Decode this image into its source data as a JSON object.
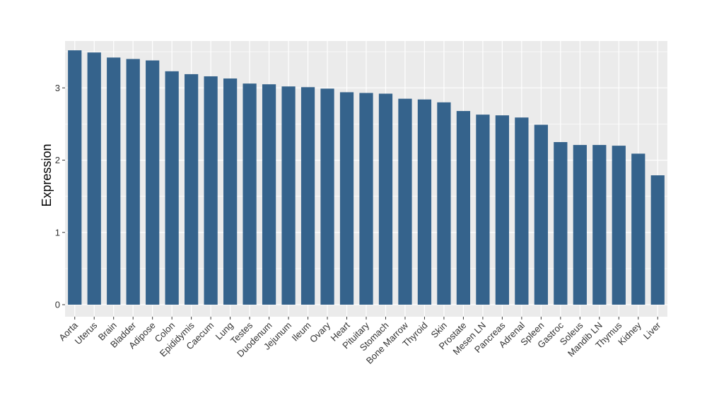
{
  "chart_data": {
    "type": "bar",
    "title": "",
    "xlabel": "",
    "ylabel": "Expression",
    "ylim": [
      0,
      3.6
    ],
    "yticks": [
      0,
      1,
      2,
      3
    ],
    "grid": true,
    "colors": {
      "bar": "#35638C",
      "panel": "#EBEBEB",
      "grid": "#FFFFFF"
    },
    "categories": [
      "Aorta",
      "Uterus",
      "Brain",
      "Bladder",
      "Adipose",
      "Colon",
      "Epididymis",
      "Caecum",
      "Lung",
      "Testes",
      "Duodenum",
      "Jejunum",
      "Ileum",
      "Ovary",
      "Heart",
      "Pituitary",
      "Stomach",
      "Bone Marrow",
      "Thyroid",
      "Skin",
      "Prostate",
      "Mesen LN",
      "Pancreas",
      "Adrenal",
      "Spleen",
      "Gastroc",
      "Soleus",
      "Mandib LN",
      "Thymus",
      "Kidney",
      "Liver"
    ],
    "values": [
      3.52,
      3.49,
      3.42,
      3.4,
      3.38,
      3.23,
      3.19,
      3.16,
      3.13,
      3.06,
      3.05,
      3.02,
      3.01,
      2.99,
      2.94,
      2.93,
      2.92,
      2.85,
      2.84,
      2.8,
      2.68,
      2.63,
      2.62,
      2.59,
      2.49,
      2.25,
      2.21,
      2.21,
      2.2,
      2.09,
      1.79
    ]
  }
}
